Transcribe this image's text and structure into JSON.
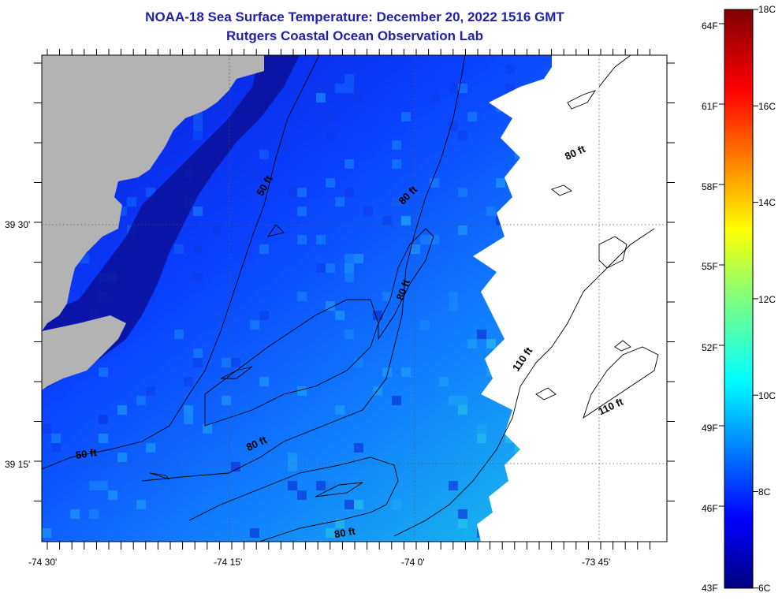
{
  "title": "NOAA-18 Sea Surface Temperature:  December 20, 2022 1516 GMT",
  "subtitle": "Rutgers Coastal Ocean Observation Lab",
  "x_ticks": [
    "-74 30'",
    "-74 15'",
    "-74 0'",
    "-73 45'"
  ],
  "y_ticks": [
    "39 30'",
    "39 15'"
  ],
  "contour_labels": [
    "50 ft",
    "50 ft",
    "80 ft",
    "80 ft",
    "80 ft",
    "80 ft",
    "80 ft",
    "110 ft",
    "110 ft"
  ],
  "colorbar": {
    "fahrenheit": [
      "64F",
      "61F",
      "58F",
      "55F",
      "52F",
      "49F",
      "46F",
      "43F"
    ],
    "celsius": [
      "18C",
      "16C",
      "14C",
      "12C",
      "10C",
      "8C",
      "6C"
    ]
  },
  "colors": {
    "land": "#b3b3b3",
    "no_data": "#ffffff",
    "cold": "#00007f",
    "warm": "#7f0000"
  }
}
